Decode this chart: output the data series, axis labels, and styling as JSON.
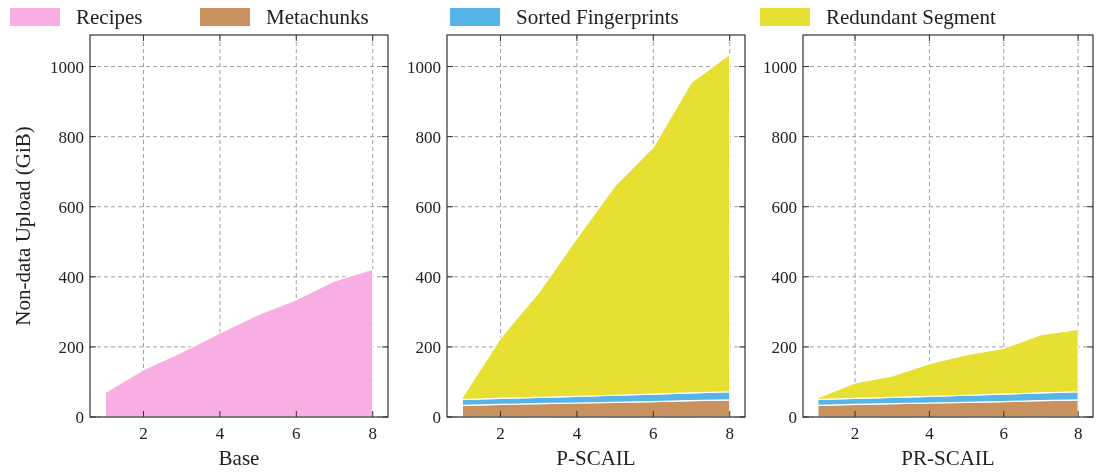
{
  "chart_data": [
    {
      "type": "area",
      "stacked": true,
      "xlabel": "Base",
      "ylabel": "Non-data Upload (GiB)",
      "x": [
        1,
        2,
        3,
        4,
        5,
        6,
        7,
        8
      ],
      "xlim": [
        0.6,
        8.4
      ],
      "xticks": [
        2,
        4,
        6,
        8
      ],
      "ylim": [
        0,
        1090
      ],
      "yticks": [
        0,
        200,
        400,
        600,
        800,
        1000
      ],
      "grid": true,
      "legend": "top",
      "series": [
        {
          "name": "Recipes",
          "color": "#f9aee3",
          "values": [
            70,
            135,
            185,
            240,
            292,
            335,
            388,
            422
          ]
        }
      ]
    },
    {
      "type": "area",
      "stacked": true,
      "xlabel": "P-SCAIL",
      "x": [
        1,
        2,
        3,
        4,
        5,
        6,
        7,
        8
      ],
      "xlim": [
        0.6,
        8.4
      ],
      "xticks": [
        2,
        4,
        6,
        8
      ],
      "ylim": [
        0,
        1090
      ],
      "yticks": [
        0,
        200,
        400,
        600,
        800,
        1000
      ],
      "grid": true,
      "legend": "top",
      "series": [
        {
          "name": "Metachunks",
          "color": "#c8915e",
          "values": [
            33,
            36,
            38,
            40,
            42,
            44,
            47,
            49
          ]
        },
        {
          "name": "Sorted Fingerprints",
          "color": "#56b4e9",
          "values": [
            17,
            17,
            18,
            19,
            20,
            21,
            22,
            23
          ]
        },
        {
          "name": "Redundant Segment",
          "color": "#e8df33",
          "values": [
            5,
            172,
            299,
            451,
            598,
            705,
            886,
            963
          ]
        }
      ]
    },
    {
      "type": "area",
      "stacked": true,
      "xlabel": "PR-SCAIL",
      "x": [
        1,
        2,
        3,
        4,
        5,
        6,
        7,
        8
      ],
      "xlim": [
        0.6,
        8.4
      ],
      "xticks": [
        2,
        4,
        6,
        8
      ],
      "ylim": [
        0,
        1090
      ],
      "yticks": [
        0,
        200,
        400,
        600,
        800,
        1000
      ],
      "grid": true,
      "legend": "top",
      "series": [
        {
          "name": "Metachunks",
          "color": "#c8915e",
          "values": [
            33,
            36,
            38,
            40,
            42,
            44,
            47,
            49
          ]
        },
        {
          "name": "Sorted Fingerprints",
          "color": "#56b4e9",
          "values": [
            17,
            17,
            18,
            19,
            20,
            21,
            22,
            23
          ]
        },
        {
          "name": "Redundant Segment",
          "color": "#e8df33",
          "values": [
            5,
            44,
            61,
            93,
            116,
            131,
            166,
            178
          ]
        }
      ]
    }
  ]
}
